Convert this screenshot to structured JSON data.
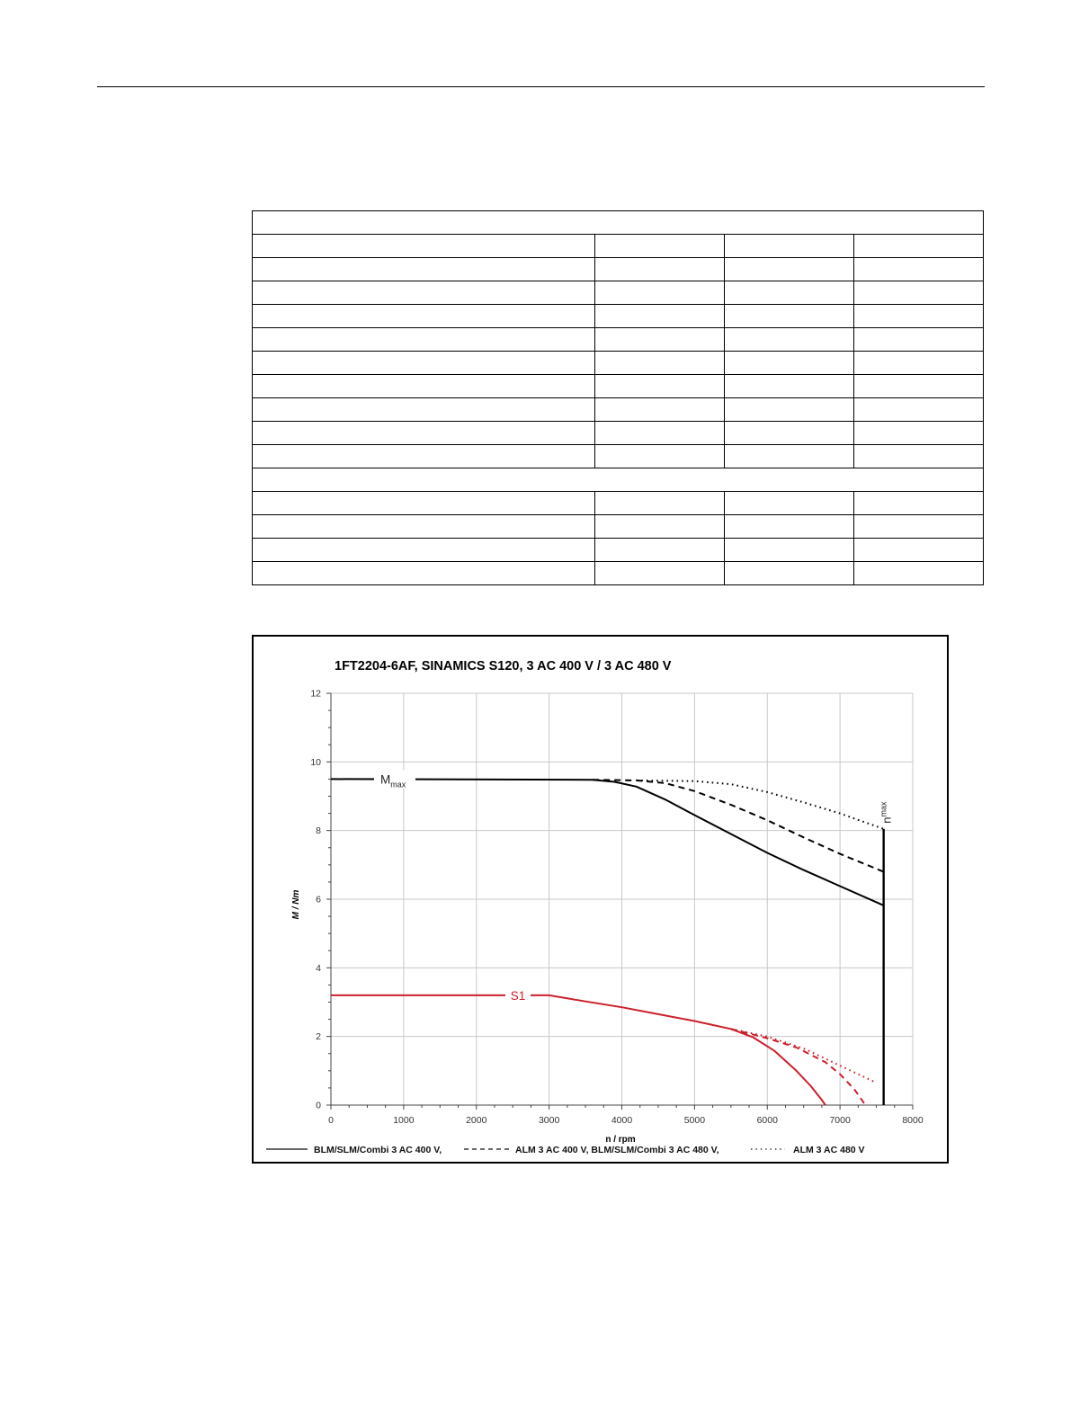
{
  "chart_data": {
    "type": "line",
    "title": "1FT2204-6AF,  SINAMICS S120,  3 AC 400 V / 3 AC 480 V",
    "xlabel": "n / rpm",
    "ylabel": "M / Nm",
    "xlim": [
      0,
      8000
    ],
    "ylim": [
      0,
      12
    ],
    "x_ticks": [
      0,
      1000,
      2000,
      3000,
      4000,
      5000,
      6000,
      7000,
      8000
    ],
    "y_ticks": [
      0,
      2,
      4,
      6,
      8,
      10,
      12
    ],
    "grid": true,
    "legend_position": "bottom",
    "legend": [
      {
        "label": "BLM/SLM/Combi 3 AC 400 V,",
        "style": "solid"
      },
      {
        "label": "ALM 3 AC 400 V, BLM/SLM/Combi 3 AC 480 V,",
        "style": "dashed"
      },
      {
        "label": "ALM 3 AC 480 V",
        "style": "dotted"
      }
    ],
    "annotations": {
      "mmax": {
        "main": "M",
        "sub": "max"
      },
      "s1": "S1",
      "nmax": {
        "main": "n",
        "sub": "max"
      }
    },
    "nmax_rpm": 7600,
    "series": [
      {
        "group": "Mmax",
        "style": "solid",
        "color": "#000000",
        "x": [
          0,
          3600,
          3900,
          4200,
          4600,
          5000,
          5500,
          6000,
          6500,
          7000,
          7600
        ],
        "y": [
          9.5,
          9.48,
          9.42,
          9.28,
          8.9,
          8.45,
          7.9,
          7.35,
          6.85,
          6.38,
          5.82
        ]
      },
      {
        "group": "Mmax",
        "style": "dashed",
        "color": "#000000",
        "x": [
          3600,
          4200,
          4600,
          5000,
          5500,
          6000,
          6500,
          7000,
          7600
        ],
        "y": [
          9.48,
          9.46,
          9.38,
          9.15,
          8.75,
          8.3,
          7.8,
          7.32,
          6.8
        ]
      },
      {
        "group": "Mmax",
        "style": "dotted",
        "color": "#000000",
        "x": [
          4200,
          5000,
          5500,
          6000,
          6500,
          7000,
          7600
        ],
        "y": [
          9.46,
          9.44,
          9.35,
          9.12,
          8.82,
          8.5,
          8.05
        ]
      },
      {
        "group": "S1",
        "style": "solid",
        "color": "#cc1f2b",
        "x": [
          0,
          3000,
          3500,
          4000,
          4500,
          5000,
          5500,
          5800,
          6100,
          6400,
          6600,
          6750,
          6800
        ],
        "y": [
          3.2,
          3.2,
          3.02,
          2.85,
          2.65,
          2.45,
          2.22,
          1.98,
          1.58,
          1.0,
          0.55,
          0.15,
          0
        ]
      },
      {
        "group": "S1",
        "style": "dashed",
        "color": "#cc1f2b",
        "x": [
          5500,
          6000,
          6400,
          6800,
          7000,
          7200,
          7300,
          7350
        ],
        "y": [
          2.22,
          1.95,
          1.68,
          1.25,
          0.9,
          0.45,
          0.15,
          0
        ]
      },
      {
        "group": "S1",
        "style": "dotted",
        "color": "#cc1f2b",
        "x": [
          5500,
          6000,
          6500,
          7000,
          7500
        ],
        "y": [
          2.22,
          2.0,
          1.65,
          1.15,
          0.65
        ]
      }
    ]
  }
}
